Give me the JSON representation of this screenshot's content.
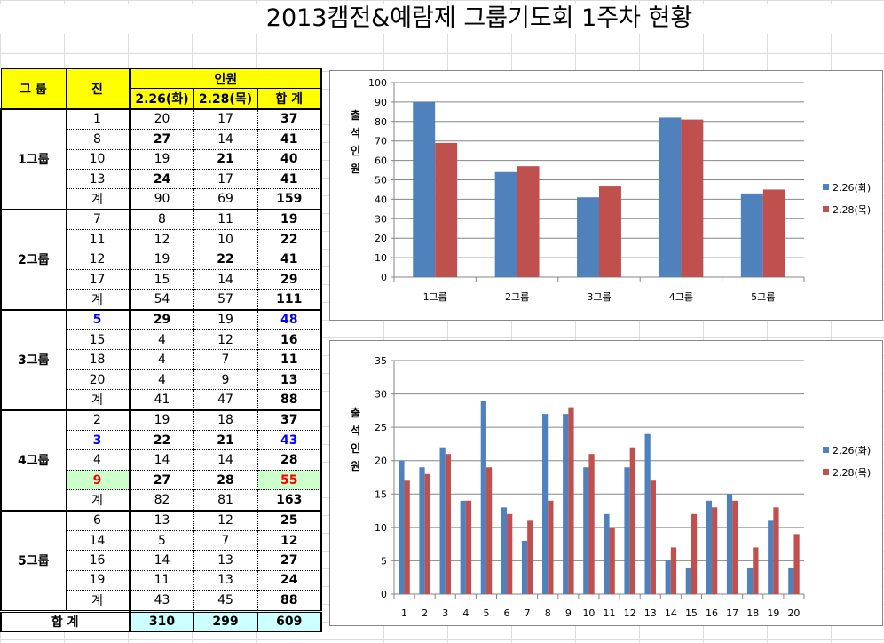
{
  "title": "2013캠전&예람제 그룹기도회 1주차 현황",
  "table": {
    "headers": {
      "group": "그  룹",
      "jin": "진",
      "people": "인원",
      "d1": "2.26(화)",
      "d2": "2.28(목)",
      "total": "합  계"
    },
    "groups": [
      {
        "name": "1그룹",
        "rows": [
          [
            "1",
            "20",
            "17",
            "37"
          ],
          [
            "8",
            "27",
            "14",
            "41"
          ],
          [
            "10",
            "19",
            "21",
            "40"
          ],
          [
            "13",
            "24",
            "17",
            "41"
          ],
          [
            "계",
            "90",
            "69",
            "159"
          ]
        ]
      },
      {
        "name": "2그룹",
        "rows": [
          [
            "7",
            "8",
            "11",
            "19"
          ],
          [
            "11",
            "12",
            "10",
            "22"
          ],
          [
            "12",
            "19",
            "22",
            "41"
          ],
          [
            "17",
            "15",
            "14",
            "29"
          ],
          [
            "계",
            "54",
            "57",
            "111"
          ]
        ]
      },
      {
        "name": "3그룹",
        "rows": [
          [
            "5",
            "29",
            "19",
            "48"
          ],
          [
            "15",
            "4",
            "12",
            "16"
          ],
          [
            "18",
            "4",
            "7",
            "11"
          ],
          [
            "20",
            "4",
            "9",
            "13"
          ],
          [
            "계",
            "41",
            "47",
            "88"
          ]
        ]
      },
      {
        "name": "4그룹",
        "rows": [
          [
            "2",
            "19",
            "18",
            "37"
          ],
          [
            "3",
            "22",
            "21",
            "43"
          ],
          [
            "4",
            "14",
            "14",
            "28"
          ],
          [
            "9",
            "27",
            "28",
            "55"
          ],
          [
            "계",
            "82",
            "81",
            "163"
          ]
        ]
      },
      {
        "name": "5그룹",
        "rows": [
          [
            "6",
            "13",
            "12",
            "25"
          ],
          [
            "14",
            "5",
            "7",
            "12"
          ],
          [
            "16",
            "14",
            "13",
            "27"
          ],
          [
            "19",
            "11",
            "13",
            "24"
          ],
          [
            "계",
            "43",
            "45",
            "88"
          ]
        ]
      }
    ],
    "highlights": {
      "blue": "#0000ff",
      "red": "#ff0000",
      "green_bg": "#ccffcc"
    },
    "footer": {
      "label": "합  계",
      "d1": "310",
      "d2": "299",
      "total": "609"
    }
  },
  "chart_data": [
    {
      "type": "bar",
      "ylabel": "출석인원",
      "categories": [
        "1그룹",
        "2그룹",
        "3그룹",
        "4그룹",
        "5그룹"
      ],
      "series": [
        {
          "name": "2.26(화)",
          "color": "#4f81bd",
          "values": [
            90,
            54,
            41,
            82,
            43
          ]
        },
        {
          "name": "2.28(목)",
          "color": "#c0504d",
          "values": [
            69,
            57,
            47,
            81,
            45
          ]
        }
      ],
      "ylim": [
        0,
        100
      ],
      "ystep": 10,
      "grid": true,
      "legend": "right"
    },
    {
      "type": "bar",
      "ylabel": "출석인원",
      "categories": [
        "1",
        "2",
        "3",
        "4",
        "5",
        "6",
        "7",
        "8",
        "9",
        "10",
        "11",
        "12",
        "13",
        "14",
        "15",
        "16",
        "17",
        "18",
        "19",
        "20"
      ],
      "series": [
        {
          "name": "2.26(화)",
          "color": "#4f81bd",
          "values": [
            20,
            19,
            22,
            14,
            29,
            13,
            8,
            27,
            27,
            19,
            12,
            19,
            24,
            5,
            4,
            14,
            15,
            4,
            11,
            4
          ]
        },
        {
          "name": "2.28(목)",
          "color": "#c0504d",
          "values": [
            17,
            18,
            21,
            14,
            19,
            12,
            11,
            14,
            28,
            21,
            10,
            22,
            17,
            7,
            12,
            13,
            14,
            7,
            13,
            9
          ]
        }
      ],
      "ylim": [
        0,
        35
      ],
      "ystep": 5,
      "grid": true,
      "legend": "right"
    }
  ]
}
